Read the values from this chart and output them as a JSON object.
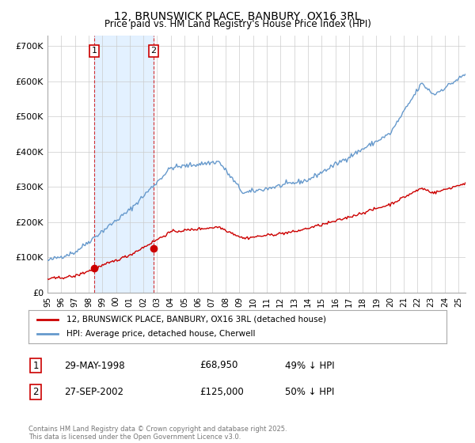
{
  "title": "12, BRUNSWICK PLACE, BANBURY, OX16 3RL",
  "subtitle": "Price paid vs. HM Land Registry's House Price Index (HPI)",
  "xlim_start": 1995.0,
  "xlim_end": 2025.5,
  "ylim_min": 0,
  "ylim_max": 730000,
  "yticks": [
    0,
    100000,
    200000,
    300000,
    400000,
    500000,
    600000,
    700000
  ],
  "ytick_labels": [
    "£0",
    "£100K",
    "£200K",
    "£300K",
    "£400K",
    "£500K",
    "£600K",
    "£700K"
  ],
  "purchase1_x": 1998.41,
  "purchase1_y": 68950,
  "purchase1_label": "1",
  "purchase1_date": "29-MAY-1998",
  "purchase1_price": "£68,950",
  "purchase1_hpi": "49% ↓ HPI",
  "purchase2_x": 2002.74,
  "purchase2_y": 125000,
  "purchase2_label": "2",
  "purchase2_date": "27-SEP-2002",
  "purchase2_price": "£125,000",
  "purchase2_hpi": "50% ↓ HPI",
  "red_line_color": "#cc0000",
  "blue_line_color": "#6699cc",
  "shade_color": "#ddeeff",
  "marker_box_color": "#cc0000",
  "legend_label_red": "12, BRUNSWICK PLACE, BANBURY, OX16 3RL (detached house)",
  "legend_label_blue": "HPI: Average price, detached house, Cherwell",
  "footer": "Contains HM Land Registry data © Crown copyright and database right 2025.\nThis data is licensed under the Open Government Licence v3.0.",
  "background_color": "#ffffff",
  "grid_color": "#cccccc"
}
